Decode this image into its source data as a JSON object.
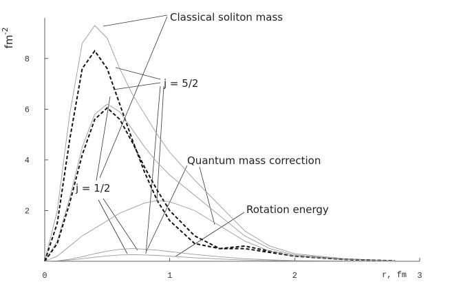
{
  "chart_data": {
    "type": "line",
    "ylabel": "fm",
    "ylabel_exponent": "-2",
    "xlabel": "r,  fm",
    "x": [
      0,
      0.1,
      0.2,
      0.3,
      0.4,
      0.5,
      0.6,
      0.7,
      0.8,
      0.9,
      1.0,
      1.2,
      1.4,
      1.6,
      1.8,
      2.0,
      2.4,
      2.8
    ],
    "series": [
      {
        "color": "#999999",
        "dash": false,
        "values": [
          0,
          2.0,
          5.8,
          8.6,
          9.3,
          8.8,
          7.6,
          6.6,
          5.8,
          5.0,
          4.3,
          3.2,
          2.2,
          1.2,
          0.6,
          0.3,
          0.1,
          0.02
        ]
      },
      {
        "color": "#111111",
        "dash": true,
        "values": [
          0,
          1.5,
          4.8,
          7.6,
          8.3,
          7.6,
          6.2,
          4.8,
          3.5,
          2.4,
          1.6,
          0.7,
          0.5,
          0.5,
          0.35,
          0.2,
          0.07,
          0.02
        ]
      },
      {
        "color": "#999999",
        "dash": false,
        "values": [
          0,
          0.8,
          2.5,
          4.5,
          5.8,
          6.2,
          5.9,
          5.2,
          4.5,
          3.9,
          3.4,
          2.6,
          1.8,
          1.0,
          0.5,
          0.25,
          0.08,
          0.02
        ]
      },
      {
        "color": "#111111",
        "dash": true,
        "values": [
          0,
          0.7,
          2.3,
          4.2,
          5.6,
          6.05,
          5.6,
          4.7,
          3.7,
          2.8,
          2.0,
          1.0,
          0.5,
          0.6,
          0.4,
          0.2,
          0.07,
          0.02
        ]
      },
      {
        "color": "#999999",
        "dash": false,
        "values": [
          0,
          0.2,
          0.6,
          1.0,
          1.3,
          1.6,
          1.9,
          2.1,
          2.3,
          2.4,
          2.35,
          2.0,
          1.4,
          0.8,
          0.4,
          0.2,
          0.07,
          0.02
        ]
      },
      {
        "color": "#999999",
        "dash": false,
        "values": [
          0,
          0.02,
          0.08,
          0.18,
          0.3,
          0.4,
          0.47,
          0.5,
          0.48,
          0.44,
          0.38,
          0.27,
          0.18,
          0.1,
          0.06,
          0.03,
          0.01,
          0
        ]
      },
      {
        "color": "#999999",
        "dash": false,
        "values": [
          0,
          0.01,
          0.05,
          0.1,
          0.16,
          0.21,
          0.25,
          0.26,
          0.25,
          0.23,
          0.2,
          0.14,
          0.09,
          0.05,
          0.03,
          0.015,
          0.005,
          0
        ]
      }
    ],
    "annotations": [
      "Classical  soliton  mass",
      "j =  5/2",
      "Quantum  mass  correction",
      "j =  1/2",
      "Rotation  energy"
    ],
    "xlim": [
      0,
      3
    ],
    "ylim": [
      0,
      9.6
    ],
    "xticks": [
      0,
      1,
      2,
      3
    ],
    "yticks": [
      2,
      4,
      6,
      8
    ]
  }
}
